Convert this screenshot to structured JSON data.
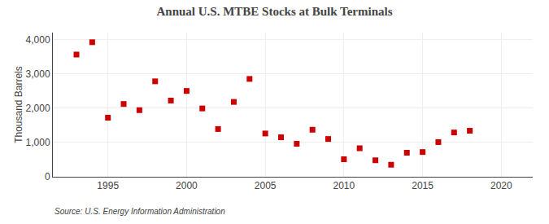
{
  "chart_data": {
    "type": "scatter",
    "title": "Annual U.S. MTBE Stocks at Bulk Terminals",
    "ylabel": "Thousand Barrels",
    "annotations": [
      "Source: U.S. Energy Information Administration"
    ],
    "x": [
      1993,
      1994,
      1995,
      1996,
      1997,
      1998,
      1999,
      2000,
      2001,
      2002,
      2003,
      2004,
      2005,
      2006,
      2007,
      2008,
      2009,
      2010,
      2011,
      2012,
      2013,
      2014,
      2015,
      2016,
      2017,
      2018
    ],
    "values": [
      3560,
      3920,
      1720,
      2120,
      1940,
      2780,
      2220,
      2500,
      1990,
      1390,
      2180,
      2850,
      1260,
      1150,
      960,
      1370,
      1100,
      510,
      830,
      480,
      350,
      700,
      720,
      1010,
      1290,
      1340
    ],
    "color": "#cc0000",
    "marker": "square",
    "xlim": [
      1991.5,
      2022
    ],
    "xticks": [
      1995,
      2000,
      2005,
      2010,
      2015,
      2020
    ],
    "ylim": [
      0,
      4200
    ],
    "yticks": [
      0,
      {
        "value": 1000,
        "label": "1,000"
      },
      {
        "value": 2000,
        "label": "2,000"
      },
      {
        "value": 3000,
        "label": "3,000"
      },
      {
        "value": 4000,
        "label": "4,000"
      }
    ],
    "grid": true
  }
}
